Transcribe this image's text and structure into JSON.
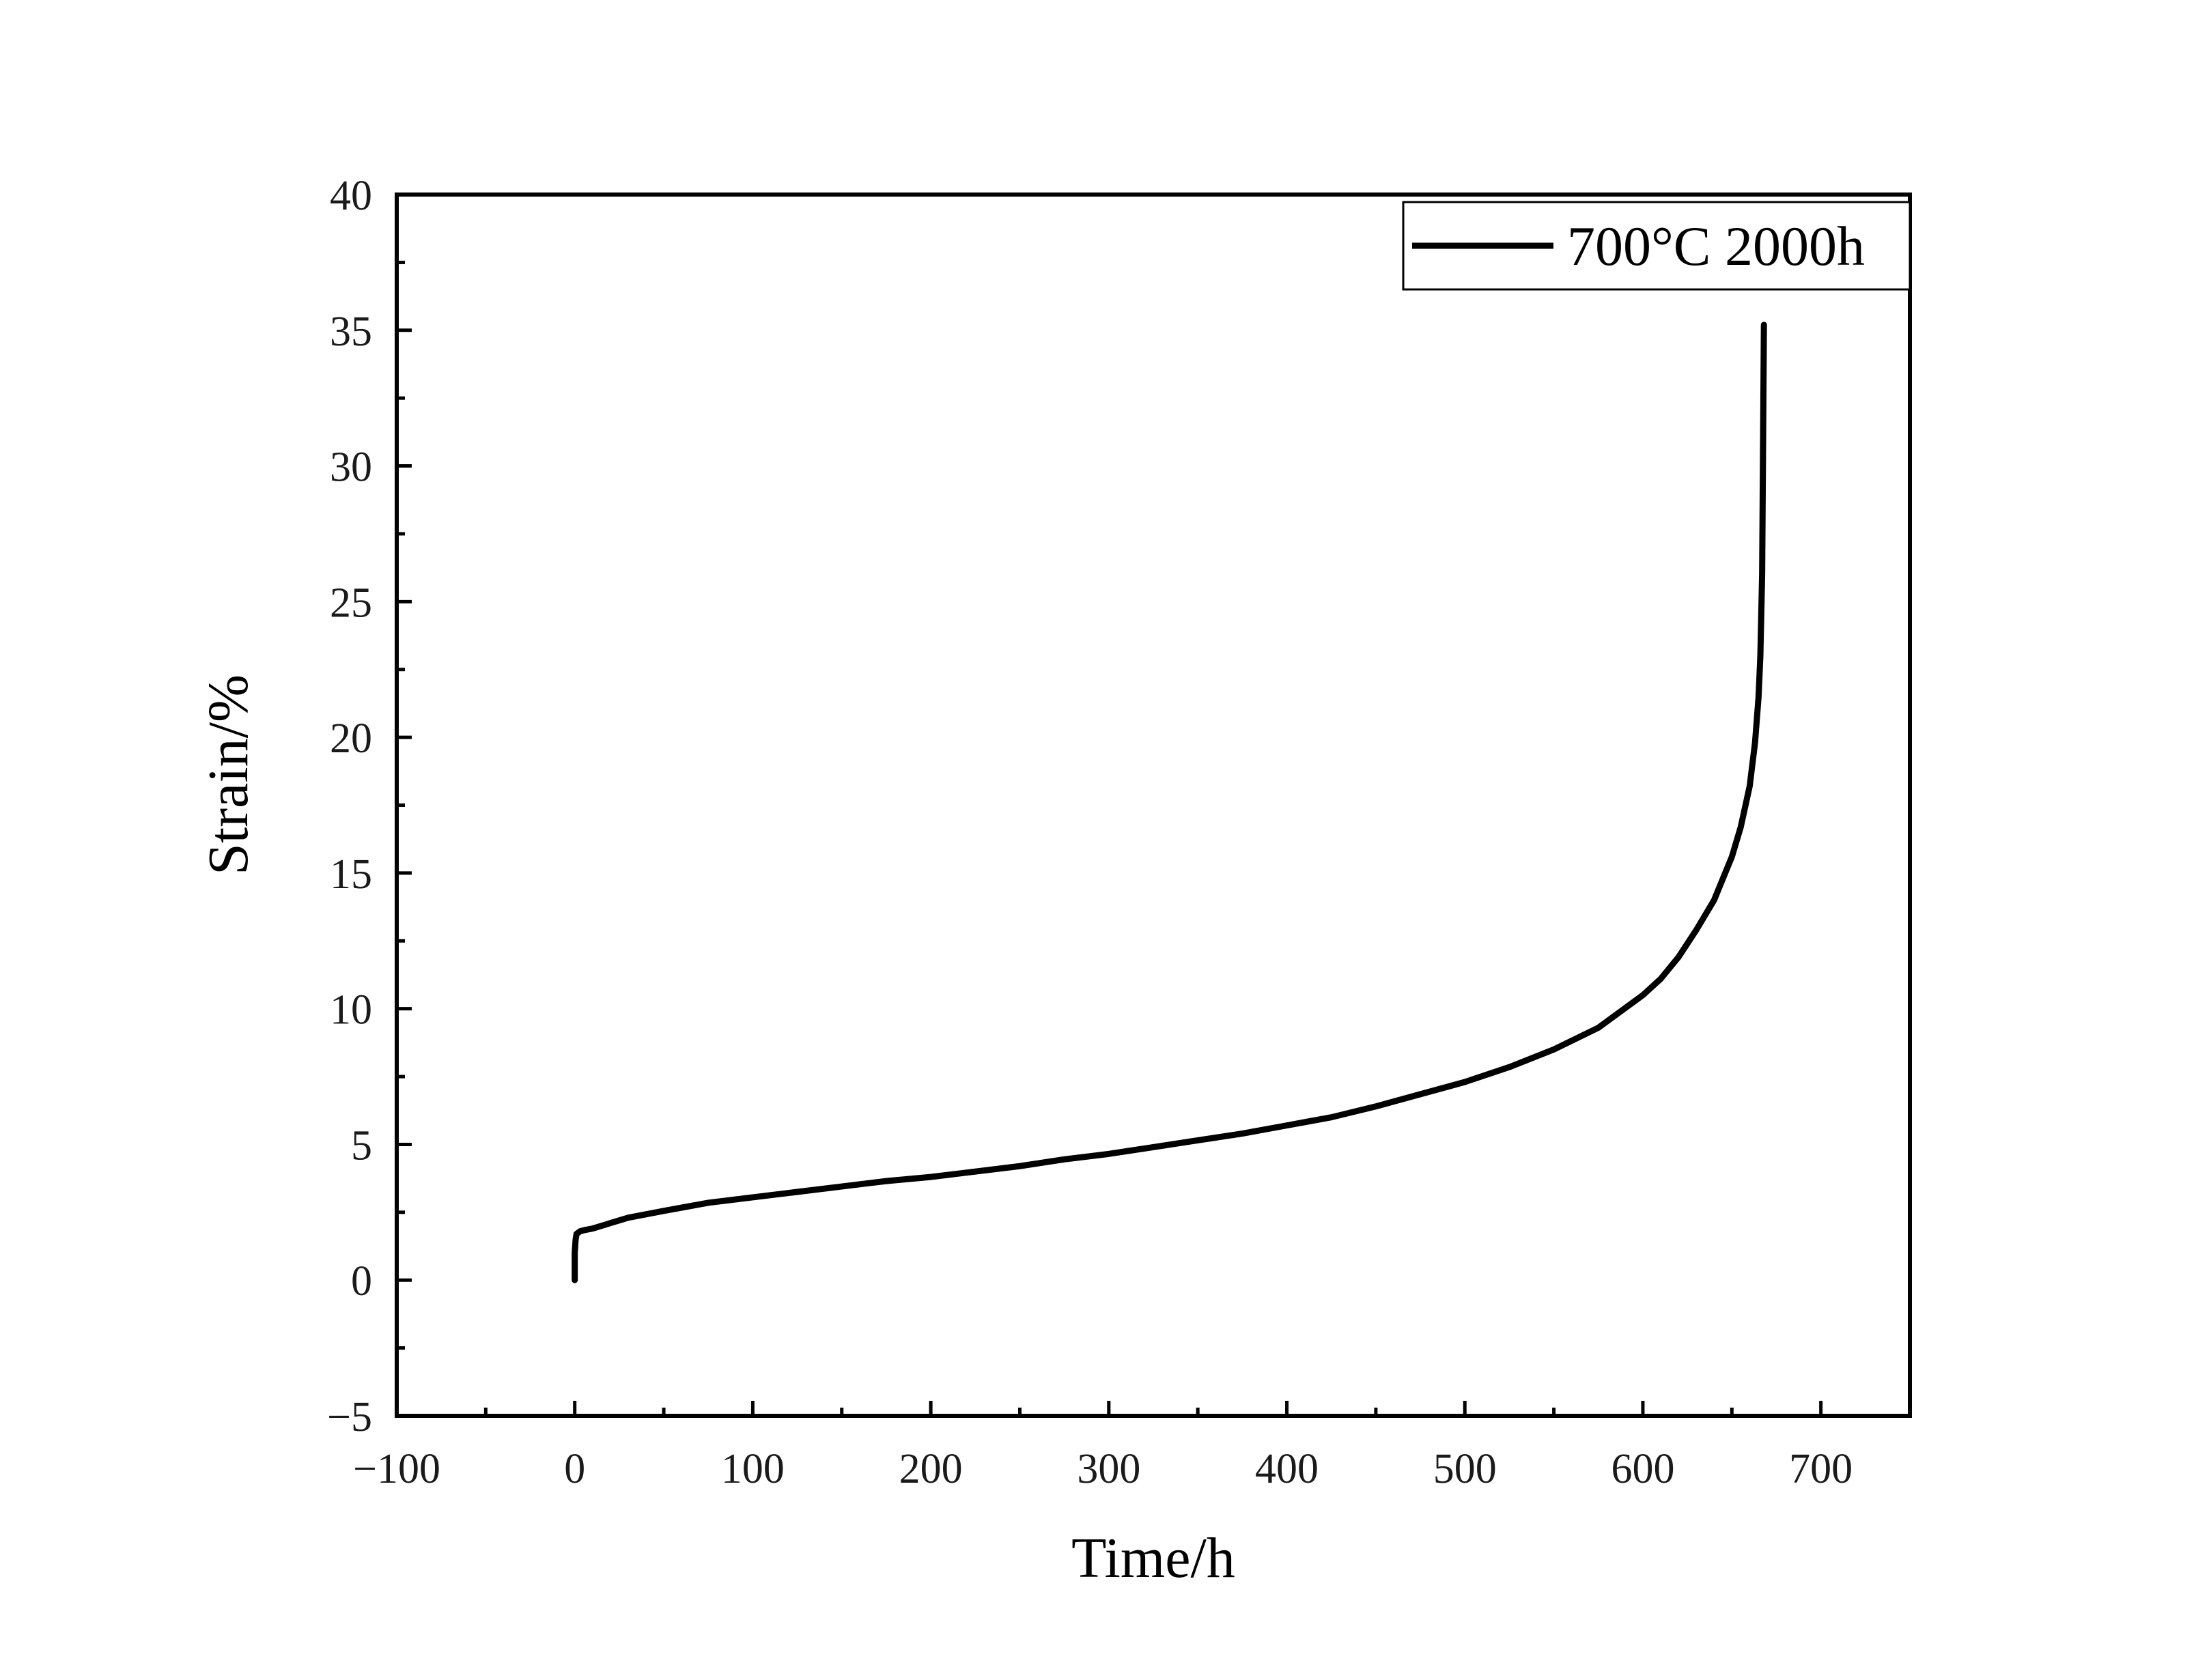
{
  "chart_data": {
    "type": "line",
    "title": "",
    "xlabel": "Time/h",
    "ylabel": "Strain/%",
    "xlim": [
      -100,
      750
    ],
    "ylim": [
      -5,
      40
    ],
    "xticks": [
      -100,
      0,
      100,
      200,
      300,
      400,
      500,
      600,
      700
    ],
    "yticks": [
      -5,
      0,
      5,
      10,
      15,
      20,
      25,
      30,
      35,
      40
    ],
    "xtick_labels": [
      "−100",
      "0",
      "100",
      "200",
      "300",
      "400",
      "500",
      "600",
      "700"
    ],
    "ytick_labels": [
      "−5",
      "0",
      "5",
      "10",
      "15",
      "20",
      "25",
      "30",
      "35",
      "40"
    ],
    "grid": false,
    "legend": {
      "position": "top-right",
      "entries": [
        "700°C 2000h"
      ]
    },
    "series": [
      {
        "name": "700°C 2000h",
        "color": "#000000",
        "x": [
          0,
          0,
          0.5,
          1,
          3,
          6,
          10,
          20,
          30,
          50,
          75,
          100,
          125,
          150,
          175,
          200,
          225,
          250,
          275,
          300,
          325,
          350,
          375,
          400,
          425,
          450,
          475,
          500,
          525,
          550,
          575,
          600,
          610,
          620,
          630,
          640,
          650,
          655,
          660,
          663,
          665,
          666,
          667,
          668
        ],
        "y": [
          0,
          1.0,
          1.5,
          1.7,
          1.8,
          1.85,
          1.9,
          2.1,
          2.3,
          2.55,
          2.85,
          3.05,
          3.25,
          3.45,
          3.65,
          3.8,
          4.0,
          4.2,
          4.45,
          4.65,
          4.9,
          5.15,
          5.4,
          5.7,
          6.0,
          6.4,
          6.85,
          7.3,
          7.85,
          8.5,
          9.3,
          10.5,
          11.1,
          11.9,
          12.9,
          14.0,
          15.6,
          16.7,
          18.2,
          19.8,
          21.5,
          23.0,
          26.0,
          35.2
        ]
      }
    ]
  }
}
